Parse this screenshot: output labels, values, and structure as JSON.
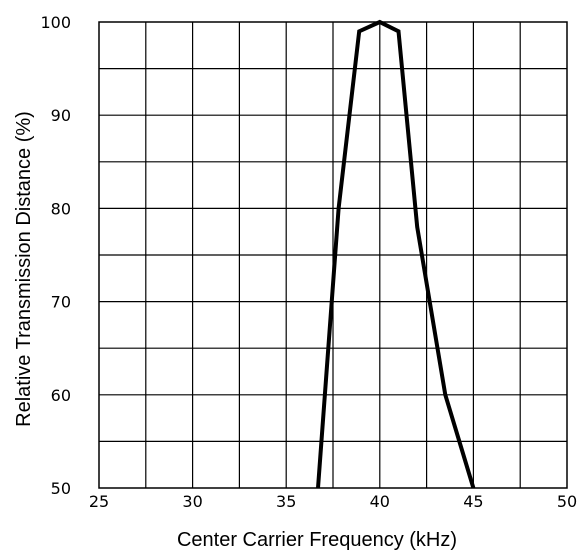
{
  "chart_data": {
    "type": "line",
    "xlabel": "Center Carrier Frequency  (kHz)",
    "ylabel": "Relative Transmission Distance (%)",
    "xlim": [
      25,
      50
    ],
    "ylim": [
      50,
      100
    ],
    "x_ticks": [
      25,
      30,
      35,
      40,
      45,
      50
    ],
    "y_ticks": [
      50,
      60,
      70,
      80,
      90,
      100
    ],
    "grid": true,
    "series": [
      {
        "color": "#000000",
        "x": [
          36.7,
          37.8,
          38.9,
          40.0,
          41.0,
          42.0,
          43.5,
          45.0
        ],
        "y": [
          50,
          80,
          99,
          100,
          99,
          78,
          60,
          50
        ]
      }
    ]
  }
}
